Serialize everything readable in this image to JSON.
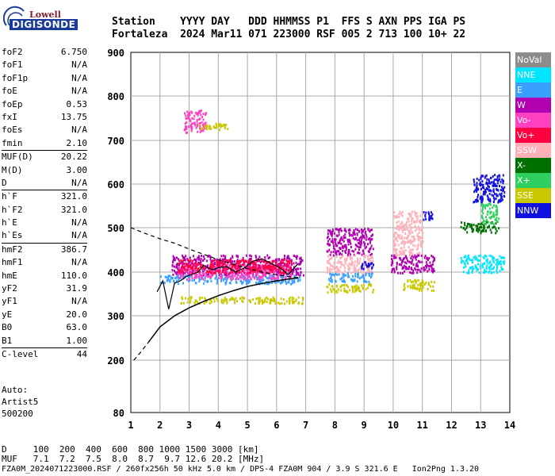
{
  "logo": {
    "line1": "Lowell",
    "line2": "DIGISONDE"
  },
  "header": {
    "labels": "Station    YYYY DAY   DDD HHMMSS P1  FFS S AXN PPS IGA PS",
    "values": "Fortaleza  2024 Mar11 071 223000 RSF 005 2 713 100 10+ 22"
  },
  "params": [
    {
      "name": "foF2",
      "value": "6.750",
      "sep": false
    },
    {
      "name": "foF1",
      "value": "N/A",
      "sep": false
    },
    {
      "name": "foF1p",
      "value": "N/A",
      "sep": false
    },
    {
      "name": "foE",
      "value": "N/A",
      "sep": false
    },
    {
      "name": "foEp",
      "value": "0.53",
      "sep": false
    },
    {
      "name": "fxI",
      "value": "13.75",
      "sep": false
    },
    {
      "name": "foEs",
      "value": "N/A",
      "sep": false
    },
    {
      "name": "fmin",
      "value": "2.10",
      "sep": false
    },
    {
      "name": "MUF(D)",
      "value": "20.22",
      "sep": true
    },
    {
      "name": "M(D)",
      "value": "3.00",
      "sep": false
    },
    {
      "name": "D",
      "value": "N/A",
      "sep": false
    },
    {
      "name": "h`F",
      "value": "321.0",
      "sep": true
    },
    {
      "name": "h`F2",
      "value": "321.0",
      "sep": false
    },
    {
      "name": "h`E",
      "value": "N/A",
      "sep": false
    },
    {
      "name": "h`Es",
      "value": "N/A",
      "sep": false
    },
    {
      "name": "hmF2",
      "value": "386.7",
      "sep": true
    },
    {
      "name": "hmF1",
      "value": "N/A",
      "sep": false
    },
    {
      "name": "hmE",
      "value": "110.0",
      "sep": false
    },
    {
      "name": "yF2",
      "value": "31.9",
      "sep": false
    },
    {
      "name": "yF1",
      "value": "N/A",
      "sep": false
    },
    {
      "name": "yE",
      "value": "20.0",
      "sep": false
    },
    {
      "name": "B0",
      "value": "63.0",
      "sep": false
    },
    {
      "name": "B1",
      "value": "1.00",
      "sep": false
    },
    {
      "name": "C-level",
      "value": "44",
      "sep": true
    }
  ],
  "auto": {
    "line1": "Auto:",
    "line2": "Artist5",
    "line3": "500200"
  },
  "bottom": {
    "d_row": "D     100  200  400  600  800 1000 1500 3000 [km]",
    "muf_row": "MUF   7.1  7.2  7.5  8.0  8.7  9.7 12.6 20.2 [MHz]",
    "footer": "FZA0M_2024071223000.RSF / 260fx256h 50 kHz 5.0 km / DPS-4 FZA0M 904 / 3.9 S 321.6 E   Ion2Png 1.3.20"
  },
  "legend": [
    {
      "label": "NoVal",
      "color": "#8c8c8c"
    },
    {
      "label": "NNE",
      "color": "#00e5ff"
    },
    {
      "label": "E",
      "color": "#3aa0ff"
    },
    {
      "label": "W",
      "color": "#b000b0"
    },
    {
      "label": "Vo-",
      "color": "#ff40c0"
    },
    {
      "label": "Vo+",
      "color": "#ff0040"
    },
    {
      "label": "SSW",
      "color": "#ffb0b8"
    },
    {
      "label": "X-",
      "color": "#007000"
    },
    {
      "label": "X+",
      "color": "#30d060"
    },
    {
      "label": "SSE",
      "color": "#c8c800"
    },
    {
      "label": "NNW",
      "color": "#1010e0"
    }
  ],
  "chart_data": {
    "type": "scatter",
    "xlim": [
      1,
      14
    ],
    "ylim": [
      80,
      900
    ],
    "x_ticks": [
      1,
      2,
      3,
      4,
      5,
      6,
      7,
      8,
      9,
      10,
      11,
      12,
      13,
      14
    ],
    "y_ticks": [
      80,
      200,
      300,
      400,
      500,
      600,
      700,
      800,
      900
    ],
    "grid": true,
    "echo_clusters": [
      {
        "color": "#c8c800",
        "x": [
          2.7,
          6.9
        ],
        "y": [
          330,
          345
        ]
      },
      {
        "color": "#3aa0ff",
        "x": [
          2.0,
          6.8
        ],
        "y": [
          375,
          395
        ]
      },
      {
        "color": "#b000b0",
        "x": [
          2.4,
          6.9
        ],
        "y": [
          395,
          440
        ]
      },
      {
        "color": "#ff40c0",
        "x": [
          2.6,
          6.5
        ],
        "y": [
          385,
          420
        ]
      },
      {
        "color": "#ff0040",
        "x": [
          2.6,
          6.5
        ],
        "y": [
          400,
          430
        ]
      },
      {
        "color": "#b000b0",
        "x": [
          7.7,
          9.3
        ],
        "y": [
          440,
          500
        ]
      },
      {
        "color": "#ffb0b8",
        "x": [
          7.7,
          9.3
        ],
        "y": [
          400,
          440
        ]
      },
      {
        "color": "#3aa0ff",
        "x": [
          7.7,
          9.3
        ],
        "y": [
          380,
          400
        ]
      },
      {
        "color": "#c8c800",
        "x": [
          7.7,
          9.3
        ],
        "y": [
          355,
          375
        ]
      },
      {
        "color": "#1010e0",
        "x": [
          8.8,
          9.3
        ],
        "y": [
          410,
          425
        ]
      },
      {
        "color": "#ffb0b8",
        "x": [
          10.0,
          11.0
        ],
        "y": [
          440,
          540
        ]
      },
      {
        "color": "#c8c800",
        "x": [
          10.3,
          11.4
        ],
        "y": [
          360,
          385
        ]
      },
      {
        "color": "#b000b0",
        "x": [
          9.9,
          11.4
        ],
        "y": [
          400,
          440
        ]
      },
      {
        "color": "#1010e0",
        "x": [
          11.0,
          11.4
        ],
        "y": [
          520,
          540
        ]
      },
      {
        "color": "#007000",
        "x": [
          12.3,
          13.6
        ],
        "y": [
          490,
          515
        ]
      },
      {
        "color": "#30d060",
        "x": [
          13.0,
          13.6
        ],
        "y": [
          510,
          560
        ]
      },
      {
        "color": "#1010e0",
        "x": [
          12.7,
          13.8
        ],
        "y": [
          560,
          625
        ]
      },
      {
        "color": "#00e5ff",
        "x": [
          12.3,
          13.8
        ],
        "y": [
          400,
          440
        ]
      },
      {
        "color": "#ff40c0",
        "x": [
          2.8,
          3.6
        ],
        "y": [
          720,
          770
        ]
      },
      {
        "color": "#c8c800",
        "x": [
          3.3,
          4.3
        ],
        "y": [
          725,
          740
        ]
      }
    ],
    "virtual_height_trace": {
      "x": [
        1.9,
        2.1,
        2.3,
        2.5,
        2.7,
        2.9,
        3.1,
        3.3,
        3.5,
        3.8,
        4.0,
        4.3,
        4.6,
        4.9,
        5.2,
        5.5,
        5.8,
        6.1,
        6.4,
        6.75
      ],
      "y": [
        355,
        380,
        315,
        375,
        380,
        390,
        395,
        400,
        415,
        405,
        410,
        412,
        400,
        410,
        425,
        430,
        420,
        410,
        395,
        420
      ]
    },
    "profile_solid": {
      "x": [
        1.6,
        2.0,
        2.5,
        3.0,
        3.5,
        4.0,
        4.5,
        5.0,
        5.5,
        6.0,
        6.5,
        6.75
      ],
      "y": [
        240,
        275,
        300,
        318,
        333,
        346,
        357,
        367,
        374,
        380,
        385,
        387
      ]
    },
    "profile_dashed_bottom": {
      "x": [
        1.1,
        1.3,
        1.6
      ],
      "y": [
        200,
        215,
        240
      ]
    },
    "profile_dashed_top": {
      "x": [
        1.0,
        1.5,
        2.0,
        2.5,
        3.0,
        3.5,
        4.0,
        4.5,
        5.0,
        5.5,
        6.0,
        6.5,
        6.75
      ],
      "y": [
        500,
        487,
        475,
        465,
        452,
        440,
        428,
        418,
        408,
        400,
        394,
        389,
        387
      ]
    }
  }
}
